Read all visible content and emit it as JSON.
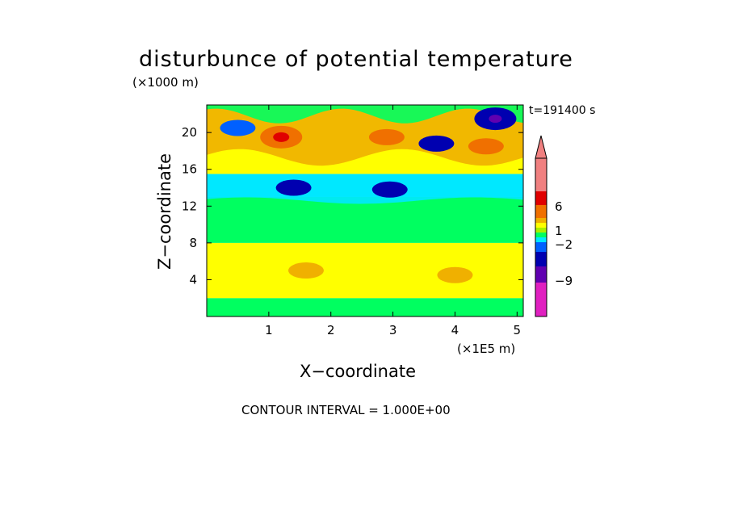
{
  "chart_data": {
    "type": "heatmap",
    "title": "disturbunce of potential temperature",
    "time_label": "t=191400 s",
    "xlabel": "X−coordinate",
    "ylabel": "Z−coordinate",
    "x_unit": "(×1E5 m)",
    "y_unit": "(×1000 m)",
    "xlim": [
      0,
      5.1
    ],
    "ylim": [
      0,
      23
    ],
    "x_ticks": [
      1,
      2,
      3,
      4,
      5
    ],
    "y_ticks": [
      4,
      8,
      12,
      16,
      20
    ],
    "contour_interval": "CONTOUR INTERVAL = 1.000E+00",
    "colorbar": {
      "tick_labels": [
        "6",
        "1",
        "−2",
        "−9"
      ],
      "tick_values": [
        6,
        1,
        -2,
        -9
      ],
      "colors_top_to_bottom": [
        "#f08080",
        "#e00000",
        "#f07000",
        "#f0b000",
        "#ffff00",
        "#aaf000",
        "#00ff60",
        "#00e8ff",
        "#0060ff",
        "#0000b0",
        "#6000b0",
        "#e020c0"
      ]
    },
    "field_bands": [
      {
        "z_from": 0,
        "z_to": 2,
        "level": "-1 to 1",
        "color": "#00ff60"
      },
      {
        "z_from": 2,
        "z_to": 8,
        "level": "1 to 3",
        "color": "#ffff00"
      },
      {
        "z_from": 8,
        "z_to": 13,
        "level": "-1 to 0",
        "color": "#00ff60"
      },
      {
        "z_from": 13,
        "z_to": 15.5,
        "level": "-2 to -1",
        "color": "#00e8ff"
      },
      {
        "z_from": 15.5,
        "z_to": 23,
        "level": "0 to 6",
        "color": "#ffff00"
      }
    ],
    "features": [
      {
        "x": 1.2,
        "z": 19.5,
        "level": 6,
        "color": "#f07000"
      },
      {
        "x": 2.9,
        "z": 19.5,
        "level": 4,
        "color": "#f07000"
      },
      {
        "x": 4.5,
        "z": 18.5,
        "level": 3,
        "color": "#f07000"
      },
      {
        "x": 1.4,
        "z": 14,
        "level": -4,
        "color": "#0000b0"
      },
      {
        "x": 2.95,
        "z": 13.8,
        "level": -4,
        "color": "#0000b0"
      },
      {
        "x": 3.7,
        "z": 18.8,
        "level": -4,
        "color": "#0000b0"
      },
      {
        "x": 4.65,
        "z": 21.5,
        "level": -7,
        "color": "#0000b0"
      },
      {
        "x": 0.5,
        "z": 20.5,
        "level": -4,
        "color": "#0060ff"
      },
      {
        "x": 1.6,
        "z": 5,
        "level": 3,
        "color": "#f0b000"
      },
      {
        "x": 4.0,
        "z": 4.5,
        "level": 3,
        "color": "#f0b000"
      }
    ]
  }
}
